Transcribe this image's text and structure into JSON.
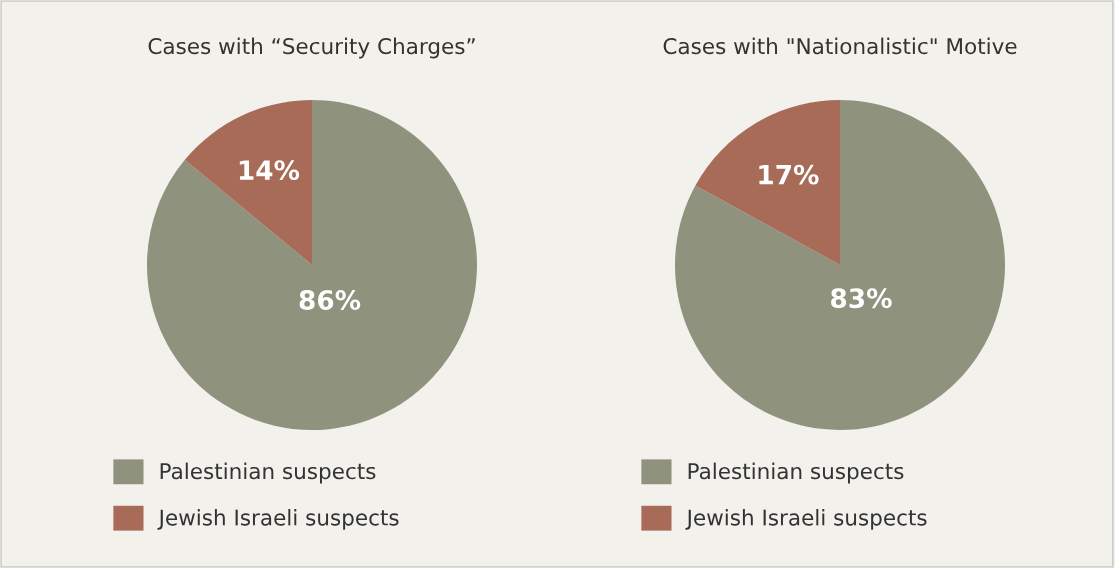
{
  "chart_data": [
    {
      "type": "pie",
      "title": "Cases with “Security Charges”",
      "categories": [
        "Palestinian suspects",
        "Jewish Israeli suspects"
      ],
      "values": [
        86,
        14
      ],
      "colors": [
        "#8f937d",
        "#a86b58"
      ],
      "value_labels": [
        "86%",
        "14%"
      ],
      "legend": "bottom"
    },
    {
      "type": "pie",
      "title": "Cases with \"Nationalistic\" Motive",
      "categories": [
        "Palestinian suspects",
        "Jewish Israeli suspects"
      ],
      "values": [
        83,
        17
      ],
      "colors": [
        "#8f937d",
        "#a86b58"
      ],
      "value_labels": [
        "83%",
        "17%"
      ],
      "legend": "bottom"
    }
  ]
}
